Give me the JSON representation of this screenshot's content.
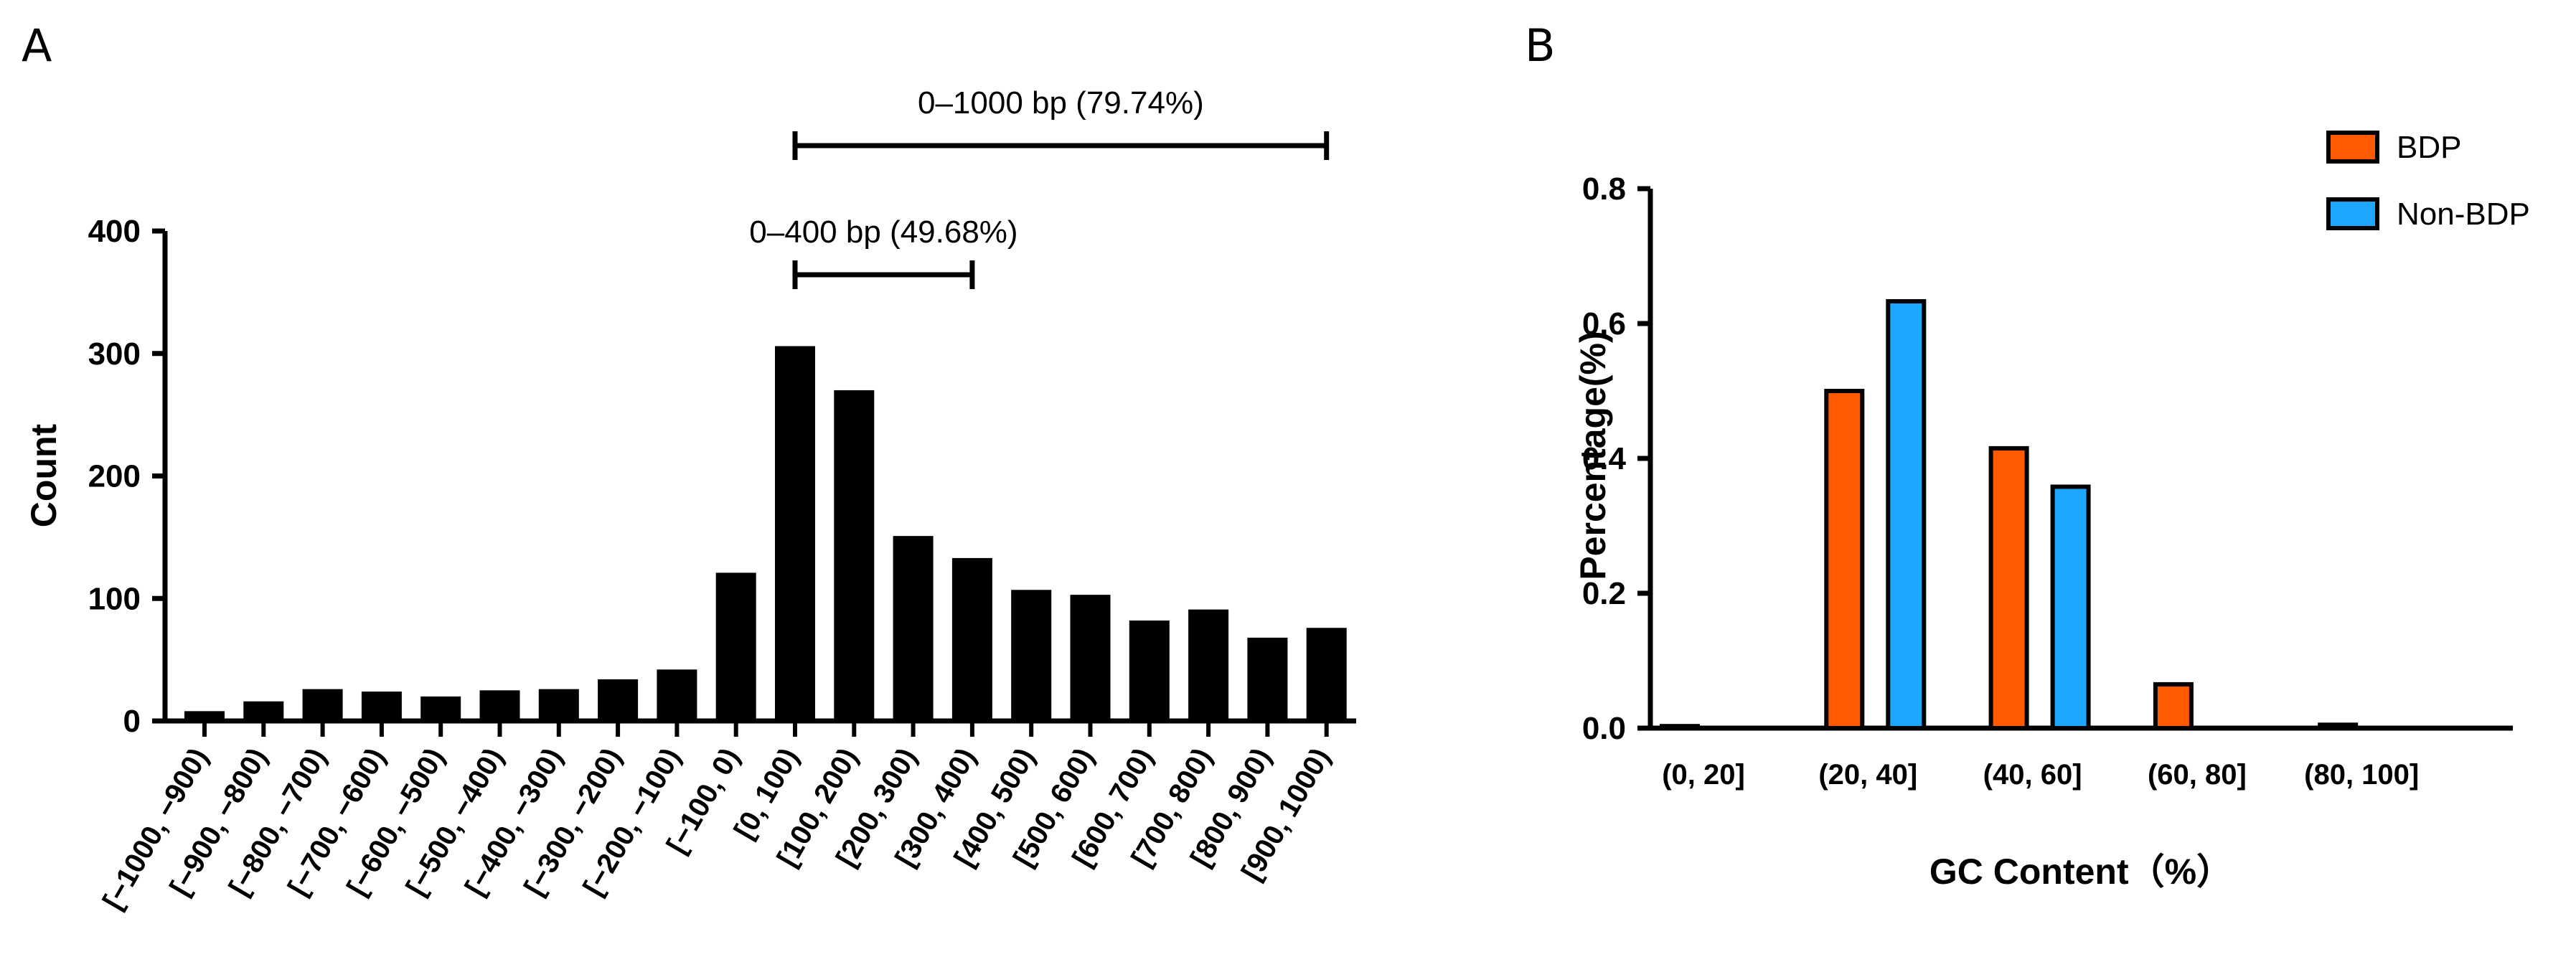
{
  "chart_data": [
    {
      "panel": "A",
      "type": "bar",
      "ylabel": "Count",
      "xlabel": "",
      "ylim": [
        0,
        400
      ],
      "yticks": [
        "0",
        "100",
        "200",
        "300",
        "400"
      ],
      "color": "#000000",
      "categories": [
        "[−1000, −900)",
        "[−900, −800)",
        "[−800, −700)",
        "[−700, −600)",
        "[−600, −500)",
        "[−500, −400)",
        "[−400, −300)",
        "[−300, −200)",
        "[−200, −100)",
        "[−100, 0)",
        "[0, 100)",
        "[100, 200)",
        "[200, 300)",
        "[300, 400)",
        "[400, 500)",
        "[500, 600)",
        "[600, 700)",
        "[700, 800)",
        "[800, 900)",
        "[900, 1000)"
      ],
      "values": [
        8,
        16,
        26,
        24,
        20,
        25,
        26,
        34,
        42,
        121,
        306,
        270,
        151,
        133,
        107,
        103,
        82,
        91,
        68,
        76
      ],
      "annotations": [
        {
          "label": "0–1000 bp (79.74%)",
          "from_category": "[0, 100)",
          "to_category": "[900, 1000)"
        },
        {
          "label": "0–400 bp (49.68%)",
          "from_category": "[0, 100)",
          "to_category": "[300, 400)"
        }
      ]
    },
    {
      "panel": "B",
      "type": "bar",
      "xlabel": "GC Content（%）",
      "ylabel": "Percentage(%)",
      "ylim": [
        0,
        0.8
      ],
      "yticks": [
        "0.0",
        "0.2",
        "0.4",
        "0.6",
        "0.8"
      ],
      "categories": [
        "(0, 20]",
        "(20, 40]",
        "(40, 60]",
        "(60, 80]",
        "(80, 100]"
      ],
      "legend_position": "top-right",
      "series": [
        {
          "name": "BDP",
          "color": "#ff5a00",
          "values": [
            0.003,
            0.5,
            0.415,
            0.065,
            0.005
          ]
        },
        {
          "name": "Non-BDP",
          "color": "#1ea7ff",
          "values": [
            0,
            0.633,
            0.358,
            0,
            0
          ]
        }
      ]
    }
  ]
}
